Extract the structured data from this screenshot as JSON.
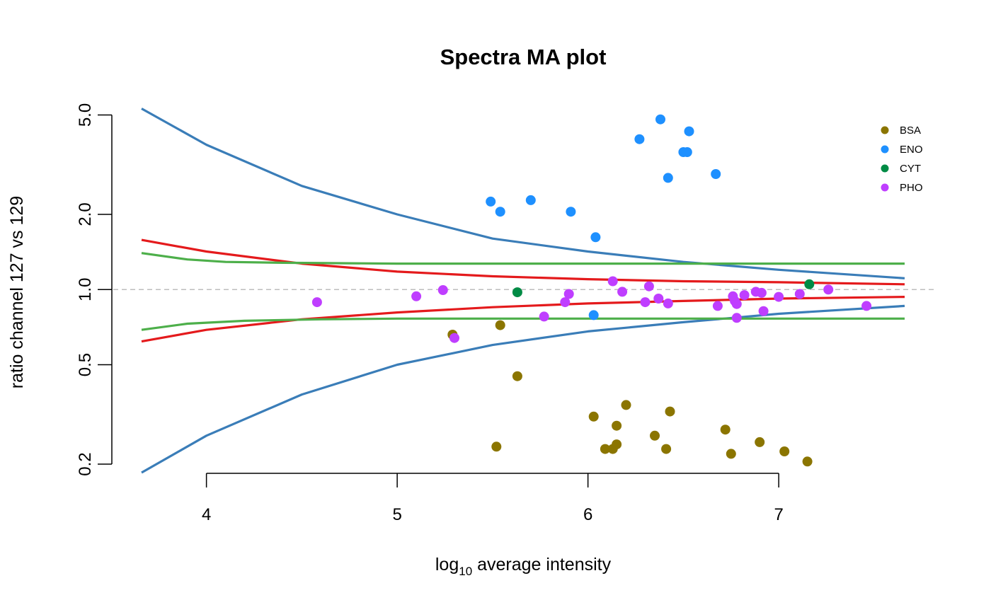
{
  "chart_data": {
    "type": "scatter",
    "title": "Spectra MA plot",
    "xlabel_main": "log",
    "xlabel_sub": "10",
    "xlabel_rest": " average intensity",
    "ylabel": "ratio channel 127 vs 129",
    "y_scale": "log",
    "xlim": [
      3.66,
      7.66
    ],
    "ylim": [
      0.185,
      5.25
    ],
    "x_ticks": [
      4,
      5,
      6,
      7
    ],
    "x_tick_labels": [
      "4",
      "5",
      "6",
      "7"
    ],
    "y_ticks": [
      0.2,
      0.5,
      1.0,
      2.0,
      5.0
    ],
    "y_tick_labels": [
      "0.2",
      "0.5",
      "1.0",
      "2.0",
      "5.0"
    ],
    "reference_line": {
      "y": 1.0,
      "style": "dashed",
      "color": "#BEBEBE"
    },
    "grid": false,
    "legend_position": "top-right",
    "series": [
      {
        "name": "BSA",
        "color": "#8B7500",
        "points": [
          [
            5.29,
            0.66
          ],
          [
            5.54,
            0.72
          ],
          [
            5.63,
            0.45
          ],
          [
            5.52,
            0.235
          ],
          [
            6.03,
            0.31
          ],
          [
            6.09,
            0.23
          ],
          [
            6.13,
            0.23
          ],
          [
            6.15,
            0.24
          ],
          [
            6.15,
            0.285
          ],
          [
            6.2,
            0.345
          ],
          [
            6.35,
            0.26
          ],
          [
            6.41,
            0.23
          ],
          [
            6.43,
            0.325
          ],
          [
            6.72,
            0.275
          ],
          [
            6.75,
            0.22
          ],
          [
            6.9,
            0.245
          ],
          [
            7.03,
            0.225
          ],
          [
            7.15,
            0.205
          ]
        ]
      },
      {
        "name": "ENO",
        "color": "#1E90FF",
        "points": [
          [
            5.49,
            2.25
          ],
          [
            5.54,
            2.05
          ],
          [
            5.7,
            2.28
          ],
          [
            5.91,
            2.05
          ],
          [
            6.04,
            1.62
          ],
          [
            6.03,
            0.79
          ],
          [
            6.27,
            4.0
          ],
          [
            6.38,
            4.8
          ],
          [
            6.42,
            2.8
          ],
          [
            6.5,
            3.55
          ],
          [
            6.52,
            3.55
          ],
          [
            6.53,
            4.3
          ],
          [
            6.67,
            2.9
          ]
        ]
      },
      {
        "name": "CYT",
        "color": "#008B45",
        "points": [
          [
            5.63,
            0.975
          ],
          [
            7.16,
            1.05
          ]
        ]
      },
      {
        "name": "PHO",
        "color": "#BF3EFF",
        "points": [
          [
            4.58,
            0.89
          ],
          [
            5.1,
            0.94
          ],
          [
            5.24,
            0.995
          ],
          [
            5.3,
            0.64
          ],
          [
            5.77,
            0.78
          ],
          [
            5.88,
            0.89
          ],
          [
            5.9,
            0.96
          ],
          [
            6.13,
            1.08
          ],
          [
            6.18,
            0.98
          ],
          [
            6.3,
            0.89
          ],
          [
            6.32,
            1.03
          ],
          [
            6.37,
            0.92
          ],
          [
            6.42,
            0.88
          ],
          [
            6.68,
            0.86
          ],
          [
            6.76,
            0.94
          ],
          [
            6.77,
            0.9
          ],
          [
            6.78,
            0.875
          ],
          [
            6.78,
            0.77
          ],
          [
            6.82,
            0.95
          ],
          [
            6.88,
            0.98
          ],
          [
            6.91,
            0.97
          ],
          [
            6.92,
            0.82
          ],
          [
            7.0,
            0.935
          ],
          [
            7.11,
            0.96
          ],
          [
            7.26,
            1.0
          ],
          [
            7.46,
            0.86
          ]
        ]
      }
    ],
    "curves": [
      {
        "color": "#3A7DB8",
        "points": [
          [
            3.66,
            5.3
          ],
          [
            4.0,
            3.8
          ],
          [
            4.5,
            2.6
          ],
          [
            5.0,
            2.0
          ],
          [
            5.5,
            1.6
          ],
          [
            6.0,
            1.42
          ],
          [
            6.5,
            1.29
          ],
          [
            7.0,
            1.2
          ],
          [
            7.66,
            1.11
          ]
        ]
      },
      {
        "color": "#3A7DB8",
        "points": [
          [
            3.66,
            0.185
          ],
          [
            4.0,
            0.26
          ],
          [
            4.5,
            0.38
          ],
          [
            5.0,
            0.5
          ],
          [
            5.5,
            0.6
          ],
          [
            6.0,
            0.68
          ],
          [
            6.5,
            0.74
          ],
          [
            7.0,
            0.8
          ],
          [
            7.66,
            0.86
          ]
        ]
      },
      {
        "color": "#E41A1C",
        "points": [
          [
            3.66,
            1.58
          ],
          [
            4.0,
            1.42
          ],
          [
            4.5,
            1.27
          ],
          [
            5.0,
            1.18
          ],
          [
            5.5,
            1.13
          ],
          [
            6.0,
            1.1
          ],
          [
            6.5,
            1.08
          ],
          [
            7.0,
            1.07
          ],
          [
            7.66,
            1.05
          ]
        ]
      },
      {
        "color": "#E41A1C",
        "points": [
          [
            3.66,
            0.62
          ],
          [
            4.0,
            0.69
          ],
          [
            4.5,
            0.76
          ],
          [
            5.0,
            0.81
          ],
          [
            5.5,
            0.85
          ],
          [
            6.0,
            0.88
          ],
          [
            6.5,
            0.9
          ],
          [
            7.0,
            0.92
          ],
          [
            7.66,
            0.935
          ]
        ]
      },
      {
        "color": "#4DAF4A",
        "points": [
          [
            3.66,
            1.4
          ],
          [
            3.9,
            1.32
          ],
          [
            4.1,
            1.29
          ],
          [
            4.4,
            1.28
          ],
          [
            5.0,
            1.27
          ],
          [
            7.66,
            1.27
          ]
        ]
      },
      {
        "color": "#4DAF4A",
        "points": [
          [
            3.66,
            0.69
          ],
          [
            3.9,
            0.73
          ],
          [
            4.2,
            0.75
          ],
          [
            4.6,
            0.76
          ],
          [
            5.0,
            0.765
          ],
          [
            7.66,
            0.765
          ]
        ]
      }
    ]
  }
}
